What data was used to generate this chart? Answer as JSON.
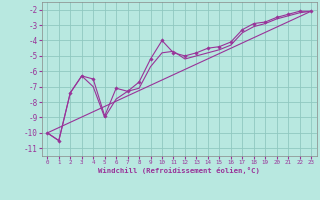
{
  "background_color": "#b8e8e0",
  "grid_color": "#90c8c0",
  "line_color": "#993399",
  "xlim": [
    -0.5,
    23.5
  ],
  "ylim": [
    -11.5,
    -1.5
  ],
  "yticks": [
    -11,
    -10,
    -9,
    -8,
    -7,
    -6,
    -5,
    -4,
    -3,
    -2
  ],
  "xticks": [
    0,
    1,
    2,
    3,
    4,
    5,
    6,
    7,
    8,
    9,
    10,
    11,
    12,
    13,
    14,
    15,
    16,
    17,
    18,
    19,
    20,
    21,
    22,
    23
  ],
  "xlabel": "Windchill (Refroidissement éolien,°C)",
  "line1_x": [
    0,
    1,
    2,
    3,
    4,
    5,
    6,
    7,
    8,
    9,
    10,
    11,
    12,
    13,
    14,
    15,
    16,
    17,
    18,
    19,
    20,
    21,
    22,
    23
  ],
  "line1_y": [
    -10.0,
    -10.5,
    -7.4,
    -6.3,
    -6.5,
    -8.9,
    -7.1,
    -7.3,
    -6.7,
    -5.2,
    -4.0,
    -4.8,
    -5.0,
    -4.8,
    -4.5,
    -4.4,
    -4.1,
    -3.3,
    -2.9,
    -2.8,
    -2.5,
    -2.3,
    -2.1,
    -2.1
  ],
  "line2_x": [
    0,
    1,
    2,
    3,
    4,
    5,
    6,
    7,
    8,
    9,
    10,
    11,
    12,
    13,
    14,
    15,
    16,
    17,
    18,
    19,
    20,
    21,
    22,
    23
  ],
  "line2_y": [
    -10.0,
    -10.5,
    -7.4,
    -6.3,
    -7.0,
    -9.0,
    -7.8,
    -7.3,
    -7.1,
    -5.7,
    -4.8,
    -4.7,
    -5.2,
    -5.0,
    -4.8,
    -4.6,
    -4.3,
    -3.5,
    -3.1,
    -2.9,
    -2.6,
    -2.4,
    -2.2,
    -2.1
  ],
  "line3_x": [
    0,
    23
  ],
  "line3_y": [
    -10.0,
    -2.1
  ]
}
